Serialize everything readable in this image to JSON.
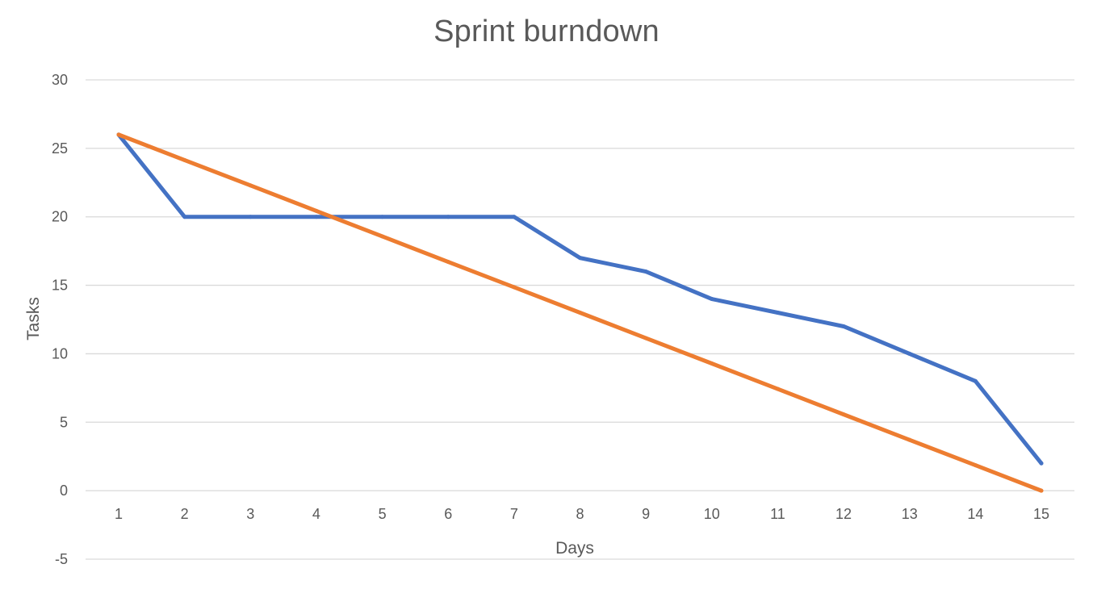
{
  "chart_data": {
    "type": "line",
    "title": "Sprint burndown",
    "xlabel": "Days",
    "ylabel": "Tasks",
    "categories": [
      "1",
      "2",
      "3",
      "4",
      "5",
      "6",
      "7",
      "8",
      "9",
      "10",
      "11",
      "12",
      "13",
      "14",
      "15"
    ],
    "ylim": [
      -5,
      30
    ],
    "yticks": [
      "-5",
      "0",
      "5",
      "10",
      "15",
      "20",
      "25",
      "30"
    ],
    "grid": true,
    "series": [
      {
        "color": "#4472C4",
        "values": [
          26,
          20,
          20,
          20,
          20,
          20,
          20,
          17,
          16,
          14,
          13,
          12,
          10,
          8,
          2
        ]
      },
      {
        "color": "#ED7D31",
        "values": [
          26,
          24.14,
          22.29,
          20.43,
          18.57,
          16.71,
          14.86,
          13,
          11.14,
          9.29,
          7.43,
          5.57,
          3.71,
          1.86,
          0
        ]
      }
    ]
  }
}
